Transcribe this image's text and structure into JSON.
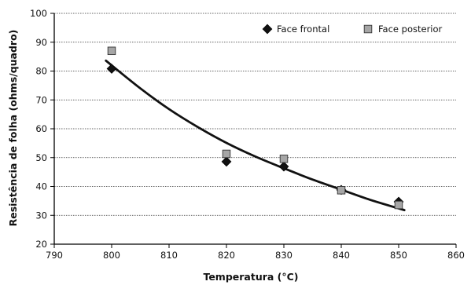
{
  "chart_data": {
    "type": "scatter",
    "xlabel": "Temperatura (°C)",
    "ylabel": "Resistência de folha (ohms/quadro)",
    "xlim": [
      790,
      860
    ],
    "ylim": [
      20,
      100
    ],
    "x_ticks": [
      790,
      800,
      810,
      820,
      830,
      840,
      850,
      860
    ],
    "y_ticks": [
      20,
      30,
      40,
      50,
      60,
      70,
      80,
      90,
      100
    ],
    "grid": "horizontal dashed",
    "legend_position": "top-right",
    "series": [
      {
        "name": "Face frontal",
        "marker": "diamond",
        "color": "#111111",
        "x": [
          800,
          820,
          830,
          840,
          850
        ],
        "y": [
          80.8,
          48.6,
          46.9,
          38.8,
          34.7
        ]
      },
      {
        "name": "Face posterior",
        "marker": "square",
        "color": "#a6a6a6",
        "x": [
          800,
          820,
          830,
          840,
          850
        ],
        "y": [
          87.0,
          51.3,
          49.6,
          38.7,
          33.6
        ]
      }
    ],
    "trendline": {
      "type": "curve",
      "color": "#111111",
      "x": [
        799,
        805,
        810,
        815,
        820,
        825,
        830,
        835,
        840,
        845,
        851
      ],
      "y": [
        83.6,
        74.0,
        66.8,
        60.6,
        55.1,
        50.4,
        46.3,
        42.4,
        38.9,
        35.4,
        31.8
      ]
    }
  }
}
